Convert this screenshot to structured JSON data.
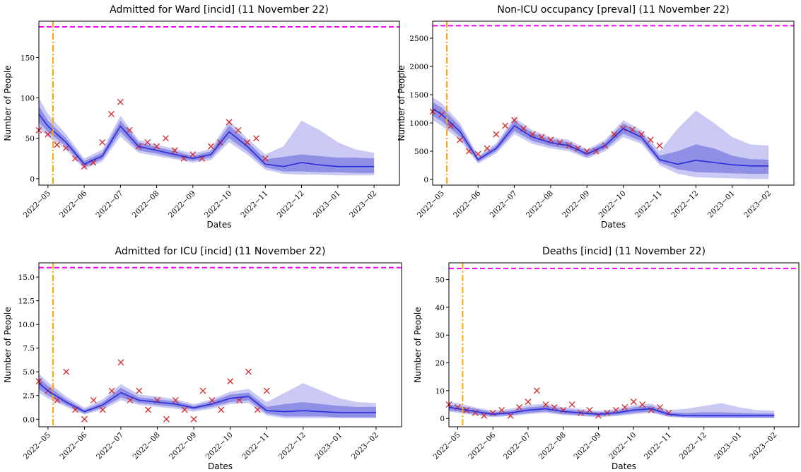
{
  "chart_data": [
    {
      "type": "line",
      "title": "Admitted for Ward [incid] (11 November 22)",
      "xlabel": "Dates",
      "ylabel": "Number of People",
      "xlim": [
        4.75,
        14.7
      ],
      "ylim": [
        -8,
        195
      ],
      "xticks": [
        {
          "value": 5,
          "label": "2022−05"
        },
        {
          "value": 6,
          "label": "2022−06"
        },
        {
          "value": 7,
          "label": "2022−07"
        },
        {
          "value": 8,
          "label": "2022−08"
        },
        {
          "value": 9,
          "label": "2022−09"
        },
        {
          "value": 10,
          "label": "2022−10"
        },
        {
          "value": 11,
          "label": "2022−11"
        },
        {
          "value": 12,
          "label": "2022−12"
        },
        {
          "value": 13,
          "label": "2023−01"
        },
        {
          "value": 14,
          "label": "2023−02"
        }
      ],
      "yticks": [
        0,
        50,
        100,
        150
      ],
      "x": [
        4.75,
        5,
        5.5,
        6,
        6.5,
        7,
        7.5,
        8,
        8.5,
        9,
        9.5,
        10,
        10.5,
        11,
        11.5,
        12,
        12.5,
        13,
        13.5,
        14
      ],
      "outer_band": {
        "color": "#c9c9f4",
        "lower": [
          62,
          52,
          36,
          12,
          21,
          52,
          32,
          28,
          24,
          20,
          23,
          45,
          30,
          11,
          6,
          5,
          5,
          4,
          4,
          4
        ],
        "upper": [
          100,
          80,
          55,
          25,
          36,
          78,
          48,
          42,
          37,
          31,
          37,
          72,
          50,
          30,
          40,
          72,
          60,
          45,
          36,
          32
        ]
      },
      "inner_band": {
        "color": "#8f8fe6",
        "lower": [
          70,
          58,
          40,
          14,
          24,
          58,
          35,
          31,
          26,
          22,
          26,
          50,
          34,
          14,
          9,
          9,
          8,
          8,
          7,
          7
        ],
        "upper": [
          90,
          72,
          50,
          22,
          32,
          72,
          45,
          39,
          34,
          28,
          34,
          66,
          46,
          24,
          27,
          30,
          28,
          26,
          26,
          25
        ]
      },
      "median": {
        "color": "#2b2bd9",
        "values": [
          80,
          65,
          45,
          18,
          28,
          65,
          40,
          35,
          30,
          25,
          30,
          58,
          40,
          18,
          15,
          20,
          17,
          15,
          15,
          15
        ]
      },
      "observations": {
        "color": "#d62728",
        "x": [
          4.75,
          5,
          5.25,
          5.5,
          5.75,
          6,
          6.25,
          6.5,
          6.75,
          7,
          7.25,
          7.5,
          7.75,
          8,
          8.25,
          8.5,
          8.75,
          9,
          9.25,
          9.5,
          9.75,
          10,
          10.25,
          10.5,
          10.75,
          11
        ],
        "values": [
          60,
          55,
          42,
          38,
          25,
          15,
          20,
          45,
          80,
          95,
          60,
          40,
          45,
          40,
          50,
          35,
          25,
          30,
          25,
          40,
          45,
          70,
          60,
          45,
          50,
          25
        ]
      },
      "capacity_line": {
        "color": "#ff00ff",
        "value": 188
      },
      "date_line": {
        "color": "#ffa500",
        "value": 5.14
      }
    },
    {
      "type": "line",
      "title": "Non-ICU occupancy [preval] (11 November 22)",
      "xlabel": "Dates",
      "ylabel": "Number of People",
      "xlim": [
        4.75,
        14.7
      ],
      "ylim": [
        -100,
        2800
      ],
      "xticks": [
        {
          "value": 5,
          "label": "2022−05"
        },
        {
          "value": 6,
          "label": "2022−06"
        },
        {
          "value": 7,
          "label": "2022−07"
        },
        {
          "value": 8,
          "label": "2022−08"
        },
        {
          "value": 9,
          "label": "2022−09"
        },
        {
          "value": 10,
          "label": "2022−10"
        },
        {
          "value": 11,
          "label": "2022−11"
        },
        {
          "value": 12,
          "label": "2022−12"
        },
        {
          "value": 13,
          "label": "2023−01"
        },
        {
          "value": 14,
          "label": "2023−02"
        }
      ],
      "yticks": [
        0,
        500,
        1000,
        1500,
        2000,
        2500
      ],
      "x": [
        4.75,
        5,
        5.5,
        6,
        6.5,
        7,
        7.5,
        8,
        8.5,
        9,
        9.5,
        10,
        10.5,
        11,
        11.5,
        12,
        12.5,
        13,
        13.5,
        14
      ],
      "outer_band": {
        "color": "#c9c9f4",
        "lower": [
          1050,
          950,
          700,
          280,
          460,
          800,
          630,
          550,
          500,
          370,
          500,
          750,
          630,
          250,
          100,
          40,
          30,
          20,
          10,
          10
        ],
        "upper": [
          1450,
          1350,
          1000,
          420,
          640,
          1100,
          870,
          750,
          700,
          530,
          700,
          1050,
          870,
          500,
          900,
          1220,
          1000,
          750,
          620,
          600
        ]
      },
      "inner_band": {
        "color": "#8f8fe6",
        "lower": [
          1130,
          1030,
          760,
          310,
          500,
          860,
          680,
          590,
          540,
          400,
          540,
          810,
          680,
          300,
          180,
          130,
          120,
          110,
          100,
          100
        ],
        "upper": [
          1370,
          1270,
          940,
          390,
          600,
          1040,
          820,
          710,
          660,
          500,
          660,
          990,
          820,
          420,
          500,
          620,
          550,
          420,
          360,
          350
        ]
      },
      "median": {
        "color": "#2b2bd9",
        "values": [
          1250,
          1150,
          850,
          350,
          550,
          950,
          750,
          650,
          600,
          450,
          600,
          900,
          750,
          350,
          270,
          340,
          300,
          260,
          240,
          240
        ]
      },
      "observations": {
        "color": "#d62728",
        "x": [
          4.75,
          5,
          5.25,
          5.5,
          5.75,
          6,
          6.25,
          6.5,
          6.75,
          7,
          7.25,
          7.5,
          7.75,
          8,
          8.25,
          8.5,
          8.75,
          9,
          9.25,
          9.5,
          9.75,
          10,
          10.25,
          10.5,
          10.75,
          11
        ],
        "values": [
          1200,
          1150,
          950,
          700,
          500,
          450,
          550,
          800,
          950,
          1050,
          900,
          800,
          750,
          700,
          650,
          600,
          550,
          500,
          500,
          600,
          800,
          900,
          880,
          800,
          700,
          600
        ]
      },
      "capacity_line": {
        "color": "#ff00ff",
        "value": 2720
      },
      "date_line": {
        "color": "#ffa500",
        "value": 5.14
      }
    },
    {
      "type": "line",
      "title": "Admitted for ICU [incid] (11 November 22)",
      "xlabel": "Dates",
      "ylabel": "Number of People",
      "xlim": [
        4.75,
        14.7
      ],
      "ylim": [
        -0.8,
        16.5
      ],
      "xticks": [
        {
          "value": 5,
          "label": "2022−05"
        },
        {
          "value": 6,
          "label": "2022−06"
        },
        {
          "value": 7,
          "label": "2022−07"
        },
        {
          "value": 8,
          "label": "2022−08"
        },
        {
          "value": 9,
          "label": "2022−09"
        },
        {
          "value": 10,
          "label": "2022−10"
        },
        {
          "value": 11,
          "label": "2022−11"
        },
        {
          "value": 12,
          "label": "2022−12"
        },
        {
          "value": 13,
          "label": "2023−01"
        },
        {
          "value": 14,
          "label": "2023−02"
        }
      ],
      "yticks": [
        {
          "value": 0,
          "label": "0.0"
        },
        2.5,
        {
          "value": 5,
          "label": "5.0"
        },
        7.5,
        {
          "value": 10,
          "label": "10.0"
        },
        12.5,
        {
          "value": 15,
          "label": "15.0"
        }
      ],
      "x": [
        4.75,
        5,
        5.5,
        6,
        6.5,
        7,
        7.5,
        8,
        8.5,
        9,
        9.5,
        10,
        10.5,
        11,
        11.5,
        12,
        12.5,
        13,
        13.5,
        14
      ],
      "outer_band": {
        "color": "#c9c9f4",
        "lower": [
          2.8,
          2.2,
          1.3,
          0.5,
          1.0,
          2.0,
          1.5,
          1.3,
          1.1,
          0.8,
          1.1,
          1.6,
          1.7,
          0.4,
          0.1,
          0.1,
          0.1,
          0.1,
          0.1,
          0.1
        ],
        "upper": [
          4.8,
          3.9,
          2.4,
          1.2,
          2.1,
          3.7,
          2.6,
          2.4,
          2.1,
          1.6,
          2.1,
          2.9,
          3.2,
          1.8,
          2.8,
          3.8,
          3.0,
          2.2,
          1.8,
          1.7
        ]
      },
      "inner_band": {
        "color": "#8f8fe6",
        "lower": [
          3.2,
          2.5,
          1.5,
          0.6,
          1.2,
          2.3,
          1.7,
          1.5,
          1.3,
          1.0,
          1.3,
          1.8,
          2.0,
          0.6,
          0.3,
          0.3,
          0.3,
          0.2,
          0.2,
          0.2
        ],
        "upper": [
          4.4,
          3.5,
          2.1,
          1.0,
          1.8,
          3.3,
          2.3,
          2.1,
          1.9,
          1.4,
          1.9,
          2.6,
          2.8,
          1.3,
          1.6,
          1.8,
          1.6,
          1.4,
          1.3,
          1.3
        ]
      },
      "median": {
        "color": "#2b2bd9",
        "values": [
          3.8,
          3.0,
          1.8,
          0.8,
          1.5,
          2.8,
          2.0,
          1.8,
          1.6,
          1.2,
          1.6,
          2.2,
          2.4,
          0.9,
          0.8,
          0.9,
          0.8,
          0.7,
          0.7,
          0.7
        ]
      },
      "observations": {
        "color": "#d62728",
        "x": [
          4.75,
          5,
          5.25,
          5.5,
          5.75,
          6,
          6.25,
          6.5,
          6.75,
          7,
          7.25,
          7.5,
          7.75,
          8,
          8.25,
          8.5,
          8.75,
          9,
          9.25,
          9.5,
          9.75,
          10,
          10.25,
          10.5,
          10.75,
          11
        ],
        "values": [
          4,
          3,
          2,
          5,
          1,
          0,
          2,
          1,
          3,
          6,
          2,
          3,
          1,
          2,
          0,
          2,
          1,
          0,
          3,
          2,
          1,
          4,
          2,
          5,
          1,
          3
        ]
      },
      "capacity_line": {
        "color": "#ff00ff",
        "value": 16
      },
      "date_line": {
        "color": "#ffa500",
        "value": 5.14
      }
    },
    {
      "type": "line",
      "title": "Deaths [incid] (11 November 22)",
      "xlabel": "Dates",
      "ylabel": "Number of People",
      "xlim": [
        4.75,
        14.7
      ],
      "ylim": [
        -3,
        56
      ],
      "xticks": [
        {
          "value": 5,
          "label": "2022−05"
        },
        {
          "value": 6,
          "label": "2022−06"
        },
        {
          "value": 7,
          "label": "2022−07"
        },
        {
          "value": 8,
          "label": "2022−08"
        },
        {
          "value": 9,
          "label": "2022−09"
        },
        {
          "value": 10,
          "label": "2022−10"
        },
        {
          "value": 11,
          "label": "2022−11"
        },
        {
          "value": 12,
          "label": "2022−12"
        },
        {
          "value": 13,
          "label": "2023−01"
        },
        {
          "value": 14,
          "label": "2023−02"
        }
      ],
      "yticks": [
        0,
        10,
        20,
        30,
        40,
        50
      ],
      "x": [
        4.75,
        5,
        5.5,
        6,
        6.5,
        7,
        7.5,
        8,
        8.5,
        9,
        9.5,
        10,
        10.5,
        11,
        11.5,
        12,
        12.5,
        13,
        13.5,
        14
      ],
      "outer_band": {
        "color": "#c9c9f4",
        "lower": [
          2.5,
          2,
          1.2,
          0.5,
          0.8,
          1.5,
          2,
          1.2,
          0.8,
          0.5,
          0.8,
          1.5,
          2,
          0.5,
          0.2,
          0.1,
          0.1,
          0.1,
          0.1,
          0.1
        ],
        "upper": [
          6,
          5.5,
          4,
          2.8,
          3.5,
          4.8,
          5.3,
          4,
          3.4,
          2.7,
          3.4,
          4.8,
          5.3,
          3,
          3.5,
          4.5,
          5.5,
          4,
          3,
          2.8
        ]
      },
      "inner_band": {
        "color": "#8f8fe6",
        "lower": [
          3,
          2.5,
          1.5,
          0.8,
          1.2,
          2,
          2.5,
          1.6,
          1.2,
          0.8,
          1.2,
          2,
          2.5,
          0.8,
          0.4,
          0.3,
          0.3,
          0.3,
          0.3,
          0.3
        ],
        "upper": [
          5,
          4.5,
          3.5,
          2.2,
          2.8,
          4,
          4.5,
          3.4,
          2.8,
          2.2,
          2.8,
          4,
          4.5,
          2.2,
          2,
          2.2,
          2.2,
          2,
          1.8,
          1.8
        ]
      },
      "median": {
        "color": "#2b2bd9",
        "values": [
          4,
          3.5,
          2.5,
          1.5,
          2,
          3,
          3.5,
          2.5,
          2,
          1.5,
          2,
          3,
          3.5,
          1.5,
          1,
          1,
          1,
          1,
          1,
          1
        ]
      },
      "observations": {
        "color": "#d62728",
        "x": [
          4.75,
          5,
          5.25,
          5.5,
          5.75,
          6,
          6.25,
          6.5,
          6.75,
          7,
          7.25,
          7.5,
          7.75,
          8,
          8.25,
          8.5,
          8.75,
          9,
          9.25,
          9.5,
          9.75,
          10,
          10.25,
          10.5,
          10.75,
          11
        ],
        "values": [
          5,
          4,
          3,
          2,
          1,
          2,
          3,
          1,
          4,
          6,
          10,
          5,
          4,
          3,
          5,
          2,
          3,
          1,
          2,
          3,
          4,
          6,
          5,
          3,
          4,
          2
        ]
      },
      "capacity_line": {
        "color": "#ff00ff",
        "value": 54
      },
      "date_line": {
        "color": "#ffa500",
        "value": 5.14
      }
    }
  ]
}
